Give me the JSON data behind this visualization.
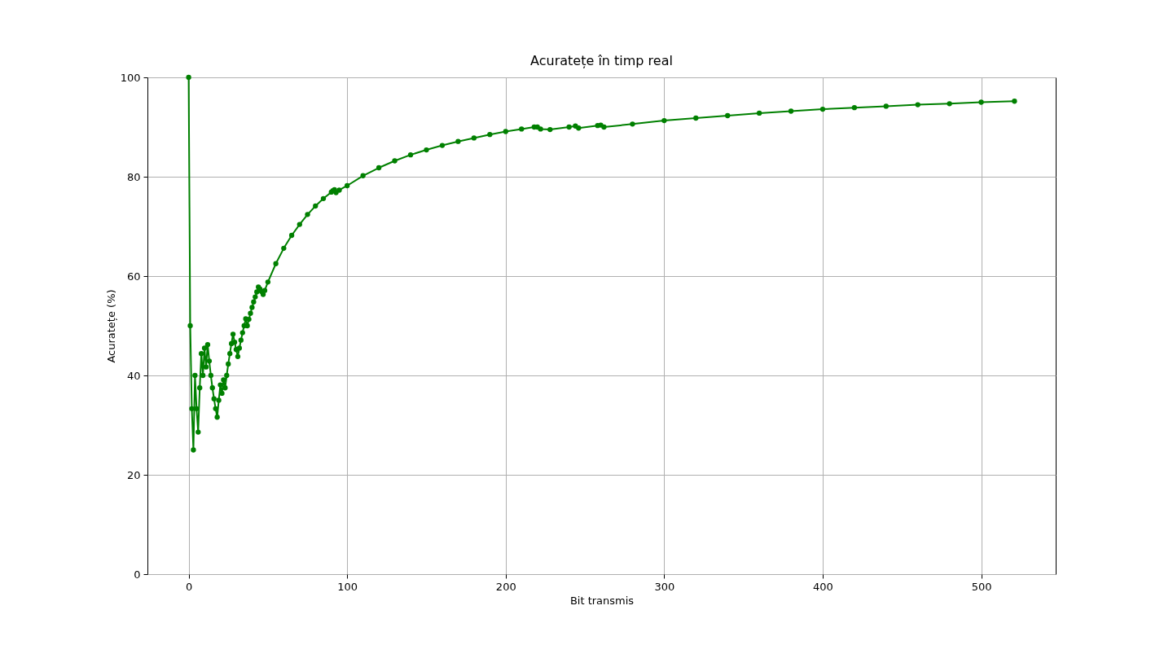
{
  "chart_data": {
    "type": "line",
    "title": "Acuratețe în timp real",
    "xlabel": "Bit transmis",
    "ylabel": "Acuratețe (%)",
    "x": [
      0,
      1,
      2,
      3,
      4,
      5,
      6,
      7,
      8,
      9,
      10,
      11,
      12,
      13,
      14,
      15,
      16,
      17,
      18,
      19,
      20,
      21,
      22,
      23,
      24,
      25,
      26,
      27,
      28,
      29,
      30,
      31,
      32,
      33,
      34,
      35,
      36,
      37,
      38,
      39,
      40,
      41,
      42,
      43,
      44,
      45,
      46,
      47,
      48,
      50,
      55,
      60,
      65,
      70,
      75,
      80,
      85,
      90,
      91,
      92,
      93,
      95,
      100,
      110,
      120,
      130,
      140,
      150,
      160,
      170,
      180,
      190,
      200,
      210,
      218,
      220,
      222,
      228,
      240,
      244,
      246,
      258,
      260,
      262,
      280,
      300,
      320,
      340,
      360,
      380,
      400,
      420,
      440,
      460,
      480,
      500,
      521
    ],
    "series": [
      {
        "color": "#008000",
        "values": [
          100,
          50,
          33.3,
          25,
          40,
          33.3,
          28.6,
          37.5,
          44.4,
          40,
          45.5,
          41.7,
          46.2,
          42.9,
          40,
          37.5,
          35.3,
          33.3,
          31.6,
          35,
          38.1,
          36.4,
          39.1,
          37.5,
          40,
          42.3,
          44.4,
          46.4,
          48.3,
          46.7,
          45.2,
          43.8,
          45.5,
          47.1,
          48.6,
          50,
          51.4,
          50,
          51.3,
          52.5,
          53.7,
          54.8,
          55.8,
          56.8,
          57.8,
          57.4,
          56.9,
          56.3,
          57.1,
          58.8,
          62.5,
          65.6,
          68.2,
          70.4,
          72.4,
          74.1,
          75.6,
          76.9,
          77.2,
          77.4,
          76.8,
          77.3,
          78.2,
          80.2,
          81.8,
          83.2,
          84.4,
          85.4,
          86.3,
          87.1,
          87.8,
          88.5,
          89.1,
          89.6,
          90,
          90,
          89.6,
          89.5,
          90,
          90.2,
          89.8,
          90.3,
          90.4,
          90,
          90.6,
          91.3,
          91.8,
          92.3,
          92.8,
          93.2,
          93.6,
          93.9,
          94.2,
          94.5,
          94.7,
          95,
          95.2
        ]
      }
    ],
    "xlim": [
      -26,
      547
    ],
    "xticks": [
      0,
      100,
      200,
      300,
      400,
      500
    ],
    "ylim": [
      0,
      100
    ],
    "yticks": [
      0,
      20,
      40,
      60,
      80,
      100
    ],
    "grid": true,
    "marker": "circle",
    "line_style": "solid"
  }
}
